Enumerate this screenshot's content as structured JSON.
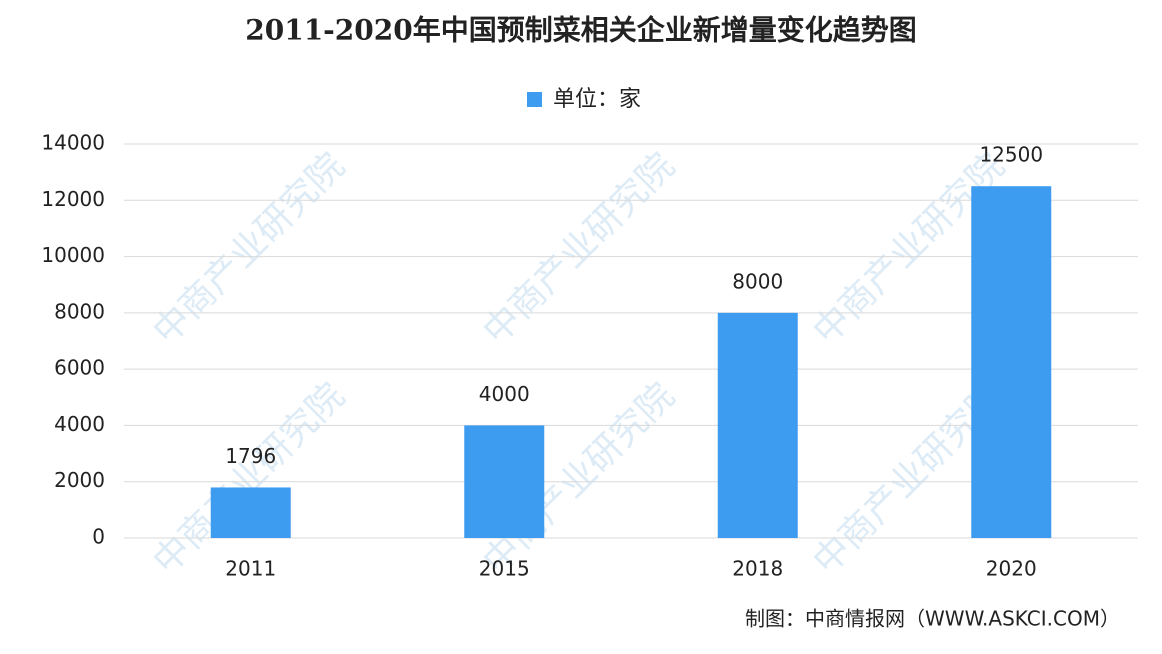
{
  "chart_data": {
    "type": "bar",
    "title": "2011-2020年中国预制菜相关企业新增量变化趋势图",
    "categories": [
      "2011",
      "2015",
      "2018",
      "2020"
    ],
    "series": [
      {
        "name": "单位：家",
        "color": "#3d9cf0",
        "values": [
          1796,
          4000,
          8000,
          12500
        ]
      }
    ],
    "ylim": [
      0,
      14000
    ],
    "yticks": [
      0,
      2000,
      4000,
      6000,
      8000,
      10000,
      12000,
      14000
    ],
    "grid": true,
    "legend": "top",
    "source": "制图：中商情报网（WWW.ASKCI.COM）",
    "watermark": "中商产业研究院"
  }
}
